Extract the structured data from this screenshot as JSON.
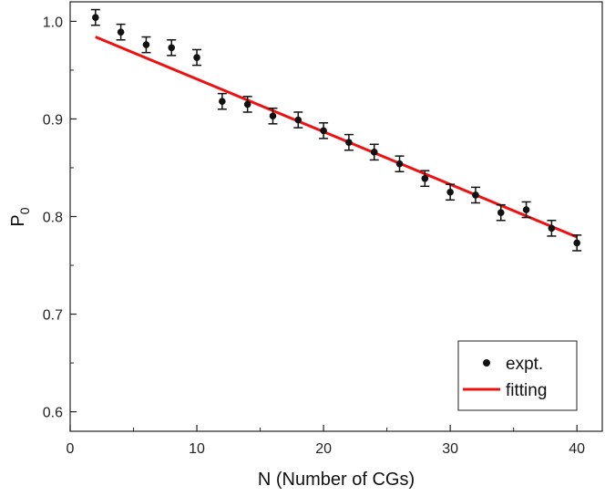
{
  "chart_data": {
    "type": "scatter",
    "xlabel": "N (Number of CGs)",
    "ylabel_main": "P",
    "ylabel_sub": "0",
    "xlim": [
      0,
      42
    ],
    "ylim": [
      0.58,
      1.02
    ],
    "xticks": [
      0,
      10,
      20,
      30,
      40
    ],
    "yticks": [
      0.6,
      0.7,
      0.8,
      0.9,
      1.0
    ],
    "xtick_labels": [
      "0",
      "10",
      "20",
      "30",
      "40"
    ],
    "ytick_labels": [
      "0.6",
      "0.7",
      "0.8",
      "0.9",
      "1.0"
    ],
    "grid": false,
    "legend_position": "bottom-right",
    "series": [
      {
        "name": "expt.",
        "kind": "points-with-error",
        "color": "#111111",
        "x": [
          2,
          4,
          6,
          8,
          10,
          12,
          14,
          16,
          18,
          20,
          22,
          24,
          26,
          28,
          30,
          32,
          34,
          36,
          38,
          40
        ],
        "y": [
          1.004,
          0.989,
          0.976,
          0.973,
          0.963,
          0.918,
          0.915,
          0.903,
          0.899,
          0.888,
          0.876,
          0.866,
          0.854,
          0.839,
          0.825,
          0.822,
          0.804,
          0.807,
          0.788,
          0.773
        ],
        "err": [
          0.008,
          0.008,
          0.008,
          0.008,
          0.008,
          0.008,
          0.008,
          0.008,
          0.008,
          0.008,
          0.008,
          0.008,
          0.008,
          0.008,
          0.008,
          0.008,
          0.008,
          0.008,
          0.008,
          0.008
        ]
      },
      {
        "name": "fitting",
        "kind": "line",
        "color": "#ee1111",
        "x": [
          2,
          40
        ],
        "y": [
          0.984,
          0.779
        ]
      }
    ]
  }
}
